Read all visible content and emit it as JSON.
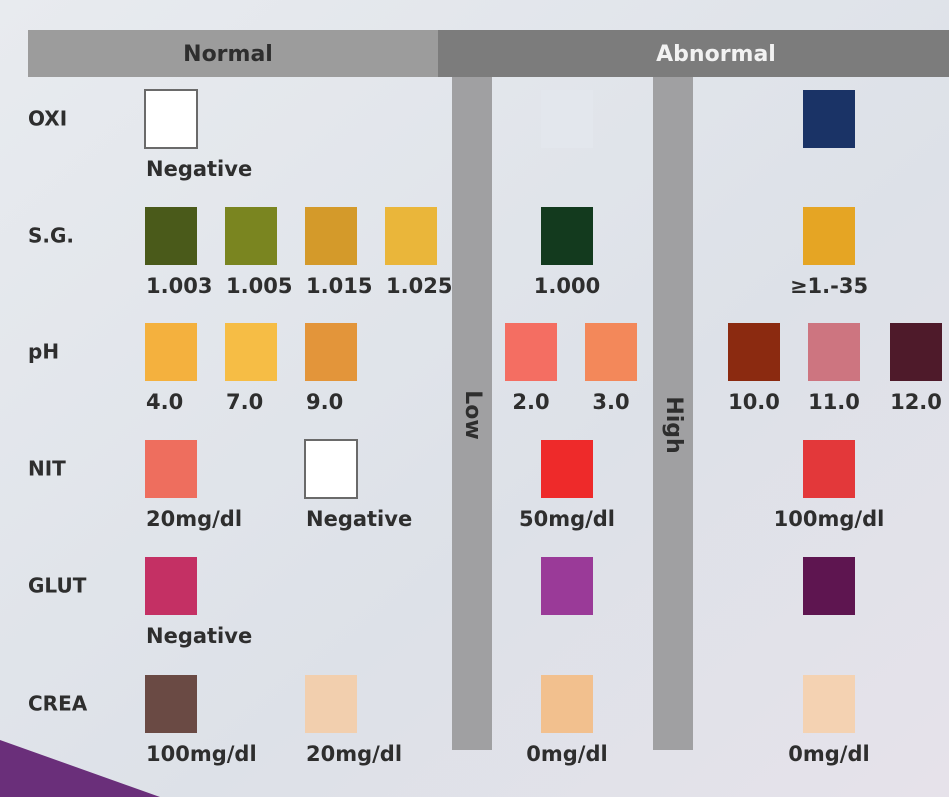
{
  "header": {
    "normal": "Normal",
    "abnormal": "Abnormal"
  },
  "bands": {
    "low": "Low",
    "high": "High"
  },
  "rows": [
    {
      "name": "OXI",
      "normal": [
        {
          "color": "#ffffff",
          "label": "Negative"
        }
      ],
      "low": [
        {
          "color": "#e3e7ed"
        }
      ],
      "high": [
        {
          "color": "#1a3366"
        }
      ]
    },
    {
      "name": "S.G.",
      "normal": [
        {
          "color": "#4a5a1a",
          "label": "1.003"
        },
        {
          "color": "#7a8520",
          "label": "1.005"
        },
        {
          "color": "#d49a2a",
          "label": "1.015"
        },
        {
          "color": "#eab63a",
          "label": "1.025"
        }
      ],
      "low": [
        {
          "color": "#133a1e",
          "label": "1.000"
        }
      ],
      "high": [
        {
          "color": "#e5a524",
          "label": "≥1.-35"
        }
      ]
    },
    {
      "name": "pH",
      "normal": [
        {
          "color": "#f4b13e",
          "label": "4.0"
        },
        {
          "color": "#f6bd45",
          "label": "7.0"
        },
        {
          "color": "#e3953a",
          "label": "9.0"
        }
      ],
      "low": [
        {
          "color": "#f46e62",
          "label": "2.0"
        },
        {
          "color": "#f3885a",
          "label": "3.0"
        }
      ],
      "high": [
        {
          "color": "#8b2a10",
          "label": "10.0"
        },
        {
          "color": "#cd7580",
          "label": "11.0"
        },
        {
          "color": "#4e1a2a",
          "label": "12.0"
        }
      ]
    },
    {
      "name": "NIT",
      "normal": [
        {
          "color": "#ee6e5e",
          "label": "20mg/dl"
        },
        {
          "color": "#ffffff",
          "label": "Negative"
        }
      ],
      "low": [
        {
          "color": "#ee2a2a",
          "label": "50mg/dl"
        }
      ],
      "high": [
        {
          "color": "#e3383a",
          "label": "100mg/dl"
        }
      ]
    },
    {
      "name": "GLUT",
      "normal": [
        {
          "color": "#c43064",
          "label": "Negative"
        }
      ],
      "low": [
        {
          "color": "#9a3a98"
        }
      ],
      "high": [
        {
          "color": "#5e1550"
        }
      ]
    },
    {
      "name": "CREA",
      "normal": [
        {
          "color": "#6a4a44",
          "label": "100mg/dl"
        },
        {
          "color": "#f2cfae",
          "label": "20mg/dl"
        }
      ],
      "low": [
        {
          "color": "#f2c08e",
          "label": "0mg/dl"
        }
      ],
      "high": [
        {
          "color": "#f4d2b2",
          "label": "0mg/dl"
        }
      ]
    }
  ]
}
